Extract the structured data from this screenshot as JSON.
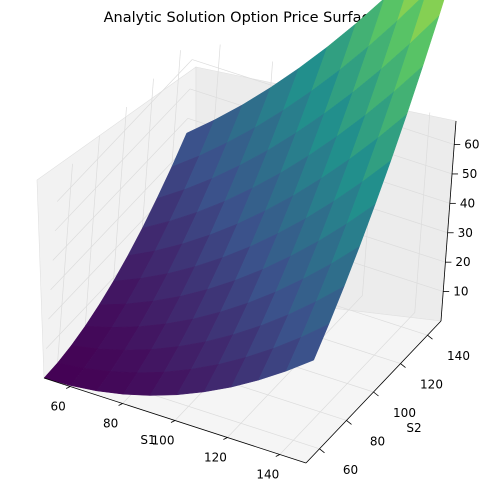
{
  "chart_data": {
    "type": "surface",
    "title": "Analytic Solution Option Price Surface",
    "xlabel": "S1",
    "ylabel": "S2",
    "zlabel": "",
    "x": [
      50,
      60,
      70,
      80,
      90,
      100,
      110,
      120,
      130,
      140,
      150
    ],
    "y": [
      50,
      60,
      70,
      80,
      90,
      100,
      110,
      120,
      130,
      140,
      150
    ],
    "z_formula": "approx 0.0035*(S1+S2-100)^2 clamped at 0",
    "xlim": [
      50,
      150
    ],
    "ylim": [
      50,
      150
    ],
    "zlim": [
      0,
      68
    ],
    "x_ticks": [
      60,
      80,
      100,
      120,
      140
    ],
    "y_ticks": [
      60,
      80,
      100,
      120,
      140
    ],
    "z_ticks": [
      10,
      20,
      30,
      40,
      50,
      60
    ],
    "colormap": "viridis",
    "grid": true
  }
}
